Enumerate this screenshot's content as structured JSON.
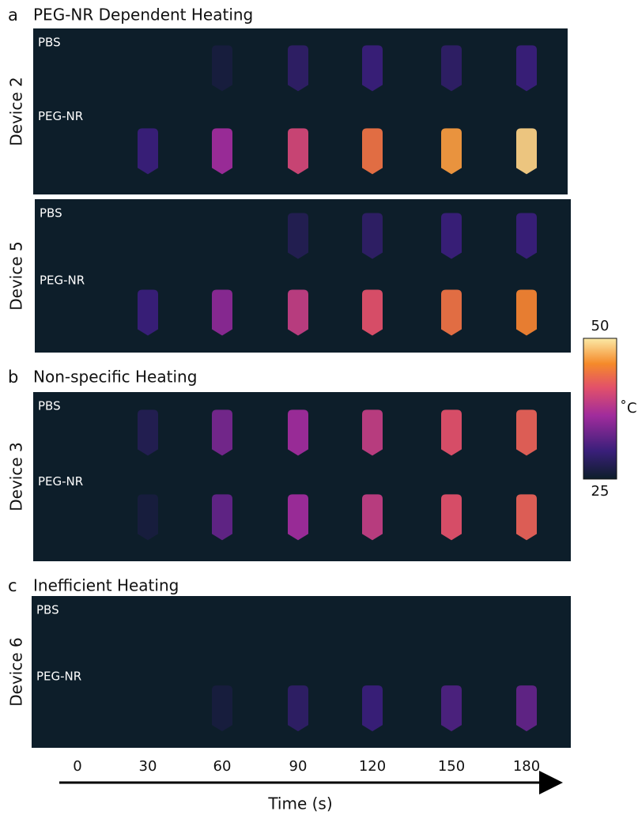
{
  "panels": [
    {
      "letter": "a",
      "title": "PEG-NR Dependent Heating",
      "images": [
        {
          "device": "Device 2",
          "rows": [
            "PBS",
            "PEG-NR"
          ]
        },
        {
          "device": "Device 5",
          "rows": [
            "PBS",
            "PEG-NR"
          ]
        }
      ]
    },
    {
      "letter": "b",
      "title": "Non-specific Heating",
      "images": [
        {
          "device": "Device 3",
          "rows": [
            "PBS",
            "PEG-NR"
          ]
        }
      ]
    },
    {
      "letter": "c",
      "title": "Inefficient Heating",
      "images": [
        {
          "device": "Device 6",
          "rows": [
            "PBS",
            "PEG-NR"
          ]
        }
      ]
    }
  ],
  "colorbar": {
    "max": 50,
    "min": 25,
    "unit": "˚C"
  },
  "time_axis": {
    "ticks": [
      0,
      30,
      60,
      90,
      120,
      150,
      180
    ],
    "label": "Time (s)"
  }
}
